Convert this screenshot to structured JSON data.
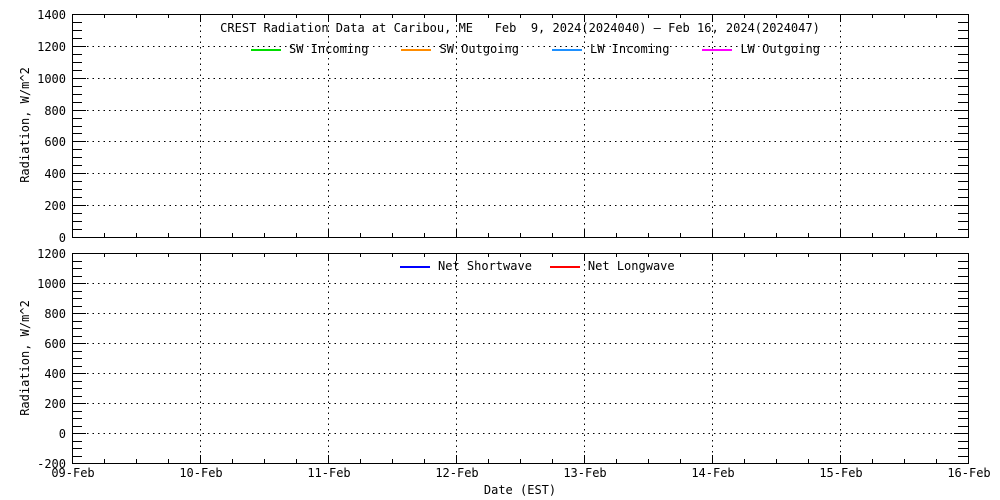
{
  "figure": {
    "background": "#ffffff",
    "text_color": "#000000",
    "axis_color": "#000000"
  },
  "chart_data": [
    {
      "type": "line",
      "panel": "top",
      "title": "CREST Radiation Data at Caribou, ME   Feb  9, 2024(2024040) – Feb 16, 2024(2024047)",
      "ylabel": "Radiation, W/m^2",
      "xlabel": "",
      "ylim": [
        0,
        1400
      ],
      "ytick_step": 200,
      "yminor_step": 50,
      "ytick_labels": [
        "0",
        "200",
        "400",
        "600",
        "800",
        "1000",
        "1200",
        "1400"
      ],
      "x_categories": [
        "09-Feb",
        "10-Feb",
        "11-Feb",
        "12-Feb",
        "13-Feb",
        "14-Feb",
        "15-Feb",
        "16-Feb"
      ],
      "x_minor_per_day": 3,
      "show_x_labels": false,
      "grid": "dotted",
      "legend_position": "top-inside",
      "series": [
        {
          "name": "SW Incoming",
          "color": "#00dd00",
          "values": []
        },
        {
          "name": "SW Outgoing",
          "color": "#ff8c00",
          "values": []
        },
        {
          "name": "LW Incoming",
          "color": "#1e90ff",
          "values": []
        },
        {
          "name": "LW Outgoing",
          "color": "#ff00ff",
          "values": []
        }
      ],
      "note": "plot area is empty - no data traces drawn"
    },
    {
      "type": "line",
      "panel": "bottom",
      "title": "",
      "ylabel": "Radiation, W/m^2",
      "xlabel": "Date (EST)",
      "ylim": [
        -200,
        1200
      ],
      "ytick_step": 200,
      "yminor_step": 50,
      "ytick_labels": [
        "-200",
        "0",
        "200",
        "400",
        "600",
        "800",
        "1000",
        "1200"
      ],
      "x_categories": [
        "09-Feb",
        "10-Feb",
        "11-Feb",
        "12-Feb",
        "13-Feb",
        "14-Feb",
        "15-Feb",
        "16-Feb"
      ],
      "x_minor_per_day": 3,
      "show_x_labels": true,
      "grid": "dotted",
      "legend_position": "top-inside",
      "series": [
        {
          "name": "Net Shortwave",
          "color": "#0000ff",
          "values": []
        },
        {
          "name": "Net Longwave",
          "color": "#ff0000",
          "values": []
        }
      ],
      "note": "plot area is empty - no data traces drawn"
    }
  ]
}
